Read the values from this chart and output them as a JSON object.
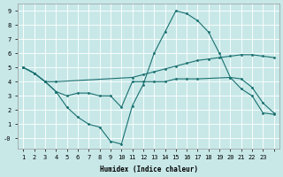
{
  "xlabel": "Humidex (Indice chaleur)",
  "background_color": "#c8e8e8",
  "grid_color": "#ffffff",
  "line_color": "#1a7070",
  "xlim": [
    -0.5,
    23.5
  ],
  "ylim": [
    -0.7,
    9.5
  ],
  "yticks": [
    0,
    1,
    2,
    3,
    4,
    5,
    6,
    7,
    8,
    9
  ],
  "line1": {
    "x": [
      0,
      1,
      2,
      3,
      10,
      11,
      12,
      13,
      14,
      15,
      16,
      17,
      18,
      19,
      20,
      21,
      22,
      23
    ],
    "y": [
      5.0,
      4.6,
      4.0,
      4.0,
      4.3,
      4.5,
      4.7,
      4.9,
      5.1,
      5.3,
      5.5,
      5.6,
      5.7,
      5.8,
      5.9,
      5.9,
      5.8,
      5.7
    ]
  },
  "line2": {
    "x": [
      0,
      1,
      2,
      3,
      4,
      5,
      6,
      7,
      8,
      9,
      10,
      11,
      12,
      13,
      14,
      15,
      16,
      17,
      18,
      19,
      20,
      21,
      22,
      23
    ],
    "y": [
      5.0,
      4.6,
      4.0,
      3.3,
      2.2,
      1.5,
      1.0,
      0.8,
      -0.2,
      -0.4,
      2.3,
      3.8,
      6.0,
      7.5,
      9.0,
      8.8,
      8.3,
      7.5,
      6.0,
      4.3,
      3.5,
      3.0,
      1.8,
      1.7
    ]
  },
  "line3": {
    "x": [
      0,
      1,
      2,
      3,
      4,
      5,
      6,
      7,
      8,
      9,
      10,
      11,
      12,
      13,
      14,
      15,
      16,
      19,
      20,
      21,
      22,
      23
    ],
    "y": [
      5.0,
      4.6,
      4.0,
      3.3,
      3.0,
      3.2,
      3.2,
      3.0,
      3.0,
      2.2,
      4.0,
      4.0,
      4.0,
      4.0,
      4.2,
      4.2,
      4.2,
      4.3,
      4.2,
      3.6,
      2.5,
      1.8
    ]
  }
}
